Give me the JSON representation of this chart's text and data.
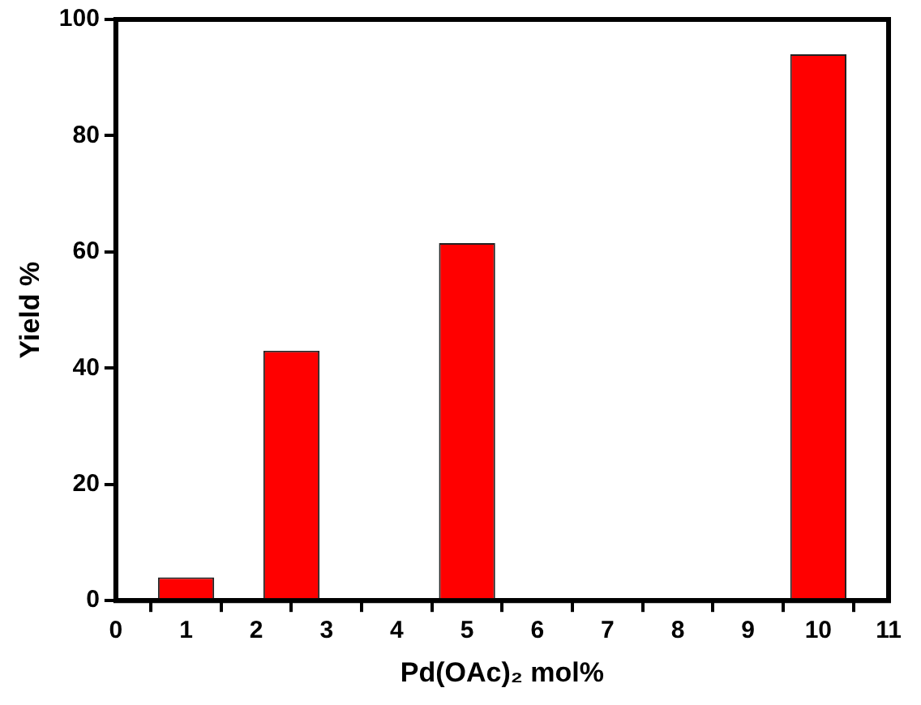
{
  "chart_data": {
    "type": "bar",
    "xlabel": "Pd(OAc)₂ mol%",
    "ylabel": "Yield %",
    "x": [
      1,
      2.5,
      5,
      10
    ],
    "values": [
      4,
      43,
      61.5,
      94
    ],
    "color": "#ff0000",
    "xlim": [
      0,
      11
    ],
    "xticks": [
      0,
      1,
      2,
      3,
      4,
      5,
      6,
      7,
      8,
      9,
      10,
      11
    ],
    "ylim": [
      0,
      100
    ],
    "yticks": [
      0,
      20,
      40,
      60,
      80,
      100
    ],
    "grid": false,
    "legend": false
  }
}
